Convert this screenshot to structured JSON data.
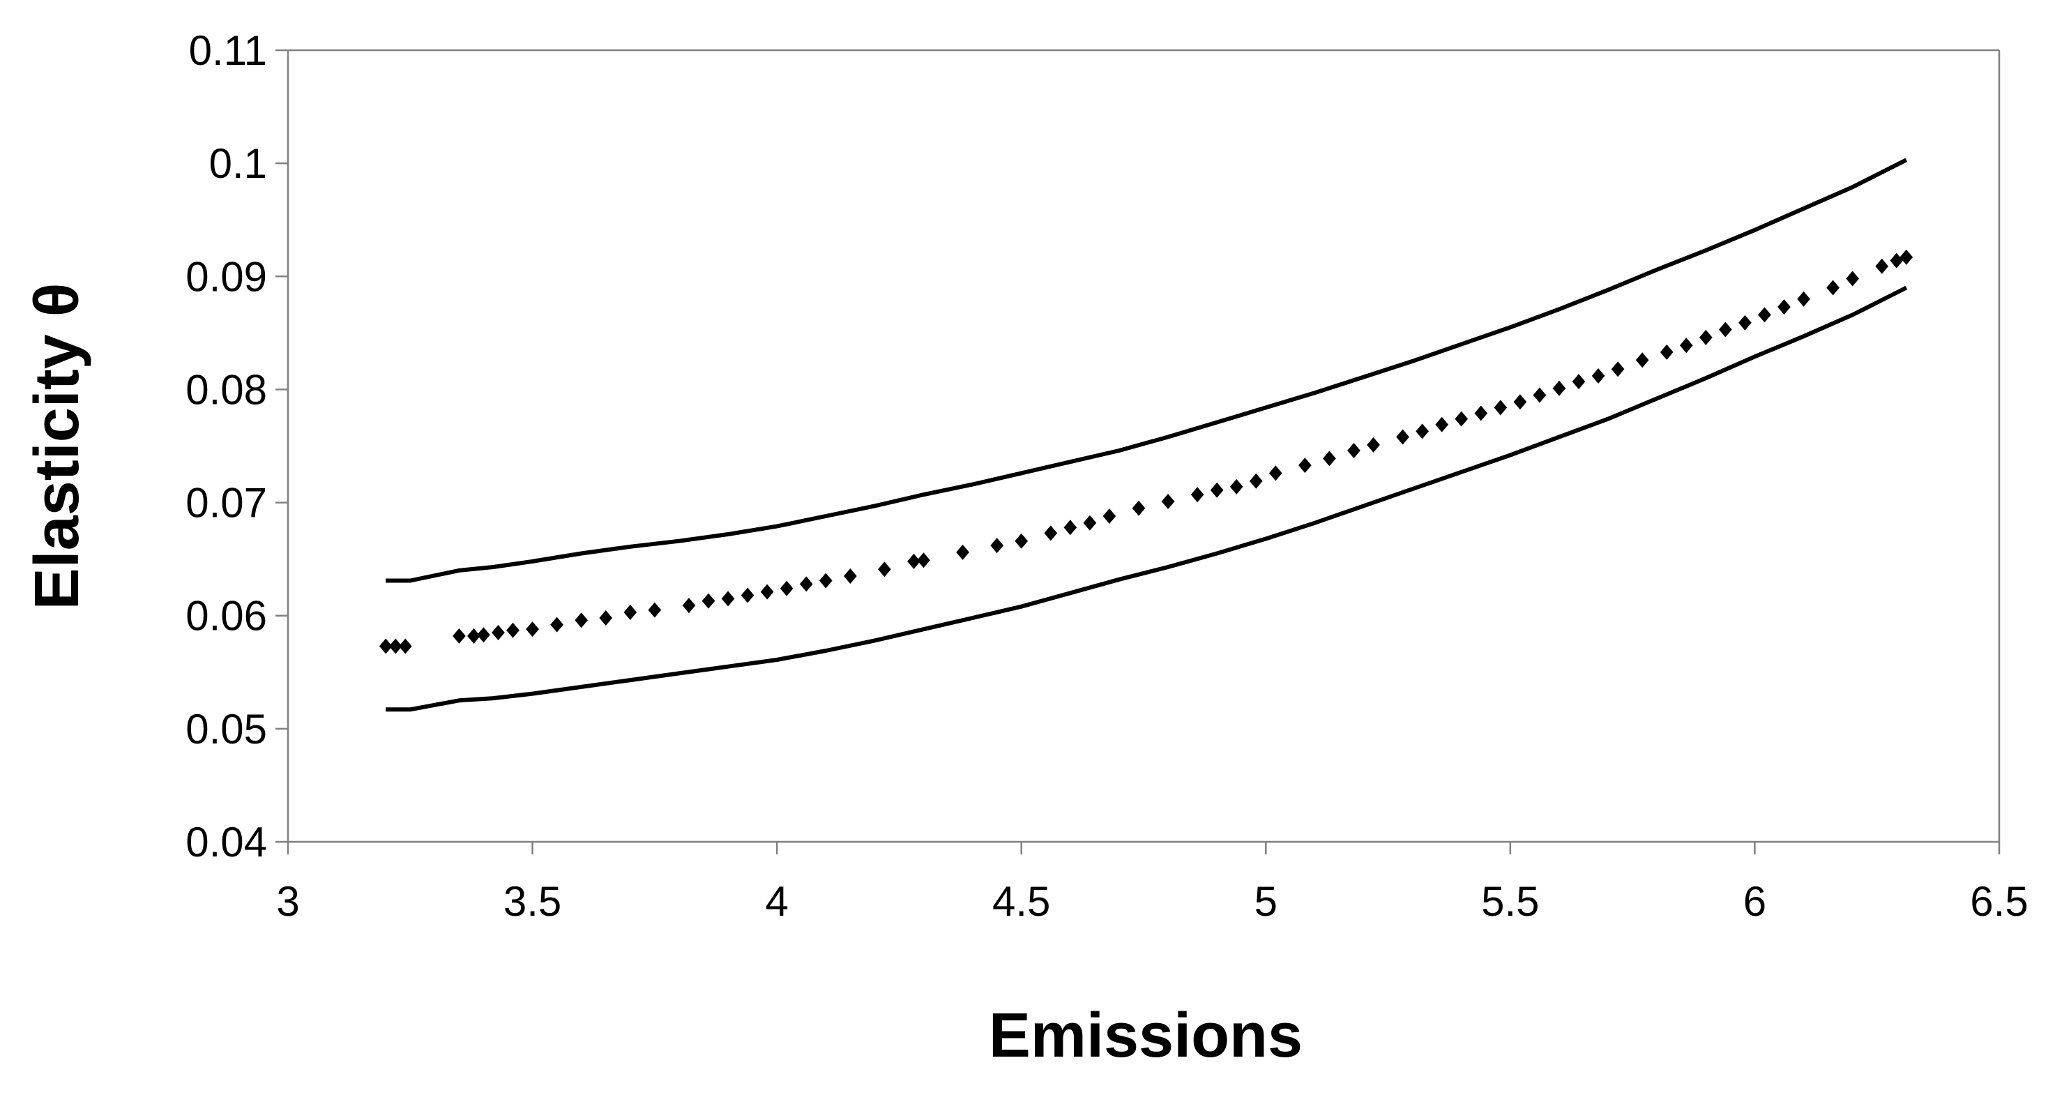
{
  "chart_data": {
    "type": "scatter",
    "title": "",
    "xlabel": "Emissions",
    "ylabel": "Elasticity θ",
    "xlim": [
      3,
      6.5
    ],
    "ylim": [
      0.04,
      0.11
    ],
    "xticks": [
      3,
      3.5,
      4,
      4.5,
      5,
      5.5,
      6,
      6.5
    ],
    "xtick_labels": [
      "3",
      "3.5",
      "4",
      "4.5",
      "5",
      "5.5",
      "6",
      "6.5"
    ],
    "yticks": [
      0.04,
      0.05,
      0.06,
      0.07,
      0.08,
      0.09,
      0.1,
      0.11
    ],
    "ytick_labels": [
      "0.04",
      "0.05",
      "0.06",
      "0.07",
      "0.08",
      "0.09",
      "0.1",
      "0.11"
    ],
    "grid": false,
    "legend": "none",
    "colors": {
      "marks": "#000000",
      "axis": "#808080"
    },
    "series": [
      {
        "kind": "points",
        "x": [
          3.2,
          3.22,
          3.24,
          3.35,
          3.38,
          3.4,
          3.43,
          3.46,
          3.5,
          3.55,
          3.6,
          3.65,
          3.7,
          3.75,
          3.82,
          3.86,
          3.9,
          3.94,
          3.98,
          4.02,
          4.06,
          4.1,
          4.15,
          4.22,
          4.28,
          4.3,
          4.38,
          4.45,
          4.5,
          4.56,
          4.6,
          4.64,
          4.68,
          4.74,
          4.8,
          4.86,
          4.9,
          4.94,
          4.98,
          5.02,
          5.08,
          5.13,
          5.18,
          5.22,
          5.28,
          5.32,
          5.36,
          5.4,
          5.44,
          5.48,
          5.52,
          5.56,
          5.6,
          5.64,
          5.68,
          5.72,
          5.77,
          5.82,
          5.86,
          5.9,
          5.94,
          5.98,
          6.02,
          6.06,
          6.1,
          6.16,
          6.2,
          6.26,
          6.29,
          6.31
        ],
        "y": [
          0.0573,
          0.0573,
          0.0573,
          0.0582,
          0.0582,
          0.0583,
          0.0585,
          0.0587,
          0.0588,
          0.0592,
          0.0596,
          0.0598,
          0.0603,
          0.0605,
          0.0609,
          0.0613,
          0.0615,
          0.0618,
          0.0621,
          0.0624,
          0.0628,
          0.0631,
          0.0635,
          0.0641,
          0.0648,
          0.0649,
          0.0656,
          0.0662,
          0.0666,
          0.0673,
          0.0678,
          0.0682,
          0.0688,
          0.0695,
          0.0701,
          0.0707,
          0.0711,
          0.0714,
          0.0719,
          0.0726,
          0.0733,
          0.0739,
          0.0746,
          0.0751,
          0.0758,
          0.0763,
          0.0769,
          0.0774,
          0.0779,
          0.0784,
          0.0789,
          0.0795,
          0.0801,
          0.0807,
          0.0812,
          0.0818,
          0.0826,
          0.0833,
          0.0839,
          0.0846,
          0.0853,
          0.0859,
          0.0866,
          0.0873,
          0.088,
          0.089,
          0.0898,
          0.0909,
          0.0914,
          0.0917
        ]
      },
      {
        "kind": "line",
        "x": [
          3.2,
          3.25,
          3.35,
          3.42,
          3.5,
          3.6,
          3.7,
          3.8,
          3.9,
          4.0,
          4.1,
          4.2,
          4.3,
          4.4,
          4.5,
          4.6,
          4.7,
          4.8,
          4.9,
          5.0,
          5.1,
          5.2,
          5.3,
          5.4,
          5.5,
          5.6,
          5.7,
          5.8,
          5.9,
          6.0,
          6.1,
          6.2,
          6.31
        ],
        "y": [
          0.0631,
          0.0631,
          0.064,
          0.0643,
          0.0648,
          0.0655,
          0.0661,
          0.0666,
          0.0672,
          0.0679,
          0.0688,
          0.0697,
          0.0707,
          0.0716,
          0.0726,
          0.0736,
          0.0746,
          0.0758,
          0.0771,
          0.0784,
          0.0797,
          0.0811,
          0.0825,
          0.084,
          0.0855,
          0.0871,
          0.0888,
          0.0906,
          0.0923,
          0.0941,
          0.096,
          0.0979,
          0.1003
        ]
      },
      {
        "kind": "line",
        "x": [
          3.2,
          3.25,
          3.35,
          3.42,
          3.5,
          3.6,
          3.7,
          3.8,
          3.9,
          4.0,
          4.1,
          4.2,
          4.3,
          4.4,
          4.5,
          4.6,
          4.7,
          4.8,
          4.9,
          5.0,
          5.1,
          5.2,
          5.3,
          5.4,
          5.5,
          5.6,
          5.7,
          5.8,
          5.9,
          6.0,
          6.1,
          6.2,
          6.31
        ],
        "y": [
          0.0517,
          0.0517,
          0.0525,
          0.0527,
          0.0531,
          0.0537,
          0.0543,
          0.0549,
          0.0555,
          0.0561,
          0.0569,
          0.0578,
          0.0588,
          0.0598,
          0.0608,
          0.062,
          0.0632,
          0.0643,
          0.0655,
          0.0668,
          0.0682,
          0.0697,
          0.0712,
          0.0727,
          0.0742,
          0.0758,
          0.0774,
          0.0792,
          0.081,
          0.0829,
          0.0847,
          0.0866,
          0.089
        ]
      }
    ]
  }
}
